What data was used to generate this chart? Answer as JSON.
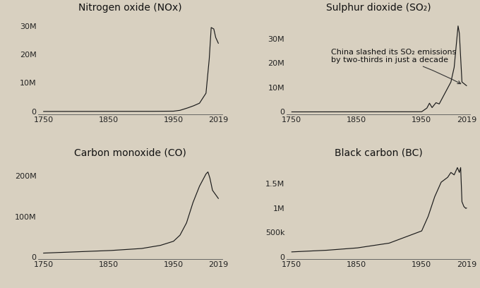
{
  "background_color": "#d8d0c0",
  "line_color": "#1a1a1a",
  "title_fontsize": 10,
  "tick_fontsize": 8,
  "annotation_fontsize": 8,
  "panels": [
    {
      "title": "Nitrogen oxide (NOx)",
      "yticks": [
        0,
        10000000,
        20000000,
        30000000
      ],
      "ytick_labels": [
        "0",
        "10M",
        "20M",
        "30M"
      ],
      "ylim": [
        -1000000,
        34000000
      ],
      "annotation": null
    },
    {
      "title": "Sulphur dioxide (SO₂)",
      "yticks": [
        0,
        10000000,
        20000000,
        30000000
      ],
      "ytick_labels": [
        "0",
        "10M",
        "20M",
        "30M"
      ],
      "ylim": [
        -1000000,
        40000000
      ],
      "annotation": "China slashed its SO₂ emissions\nby two-thirds in just a decade"
    },
    {
      "title": "Carbon monoxide (CO)",
      "yticks": [
        0,
        100000000,
        200000000
      ],
      "ytick_labels": [
        "0",
        "100M",
        "200M"
      ],
      "ylim": [
        -5000000,
        240000000
      ],
      "annotation": null
    },
    {
      "title": "Black carbon (BC)",
      "yticks": [
        0,
        500000,
        1000000,
        1500000
      ],
      "ytick_labels": [
        "0",
        "500k",
        "1M",
        "1.5M"
      ],
      "ylim": [
        -50000,
        2000000
      ],
      "annotation": null
    }
  ],
  "xticks": [
    1750,
    1850,
    1950,
    2019
  ],
  "xlim": [
    1742,
    2025
  ]
}
